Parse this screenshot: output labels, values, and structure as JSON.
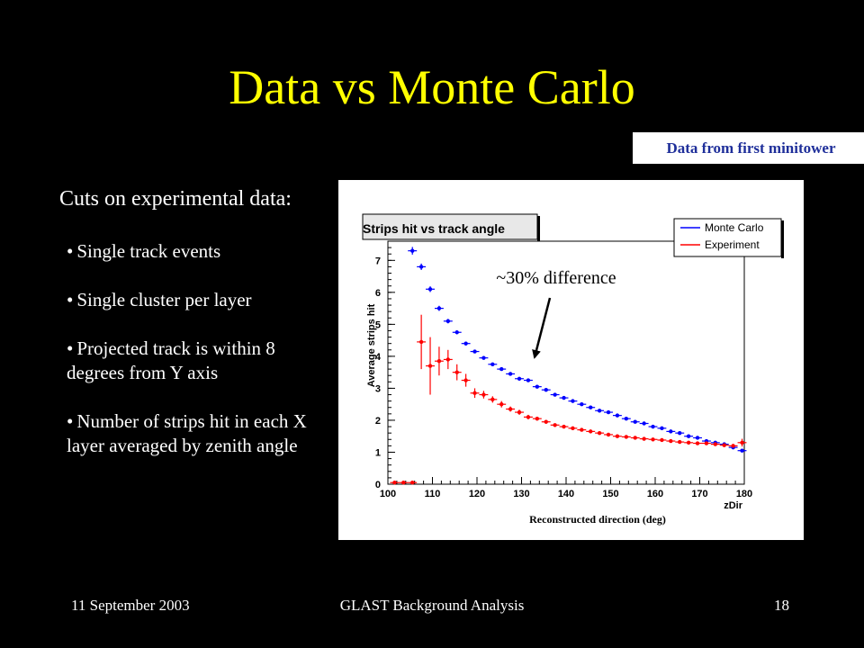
{
  "slide": {
    "title": "Data vs Monte Carlo",
    "source_badge": "Data from first minitower",
    "cuts_heading": "Cuts on experimental data:",
    "cuts": [
      "Single track events",
      "Single cluster per layer",
      "Projected track is within 8 degrees from Y axis",
      "Number of strips hit in each X layer averaged by zenith angle"
    ],
    "bullet": "•"
  },
  "footer": {
    "date": "11 September 2003",
    "title": "GLAST Background Analysis",
    "page": "18"
  },
  "chart_data": {
    "type": "scatter",
    "title": "Strips hit vs track angle",
    "xlabel": "zDir",
    "ylabel": "Average strips hit",
    "caption": "Reconstructed direction (deg)",
    "annotation": "~30% difference",
    "xlim": [
      100,
      180
    ],
    "ylim": [
      0,
      7.6
    ],
    "xticks": [
      100,
      110,
      120,
      130,
      140,
      150,
      160,
      170,
      180
    ],
    "yticks": [
      0,
      1,
      2,
      3,
      4,
      5,
      6,
      7
    ],
    "grid": false,
    "legend_position": "top-right",
    "series": [
      {
        "name": "Monte Carlo",
        "color": "#0000ff",
        "x": [
          105.5,
          107.5,
          109.5,
          111.5,
          113.5,
          115.5,
          117.5,
          119.5,
          121.5,
          123.5,
          125.5,
          127.5,
          129.5,
          131.5,
          133.5,
          135.5,
          137.5,
          139.5,
          141.5,
          143.5,
          145.5,
          147.5,
          149.5,
          151.5,
          153.5,
          155.5,
          157.5,
          159.5,
          161.5,
          163.5,
          165.5,
          167.5,
          169.5,
          171.5,
          173.5,
          175.5,
          177.5,
          179.5
        ],
        "y": [
          7.3,
          6.8,
          6.1,
          5.5,
          5.1,
          4.75,
          4.4,
          4.15,
          3.95,
          3.75,
          3.6,
          3.45,
          3.3,
          3.25,
          3.05,
          2.95,
          2.8,
          2.7,
          2.6,
          2.5,
          2.4,
          2.3,
          2.25,
          2.15,
          2.05,
          1.95,
          1.9,
          1.8,
          1.75,
          1.65,
          1.6,
          1.5,
          1.45,
          1.35,
          1.3,
          1.25,
          1.15,
          1.05
        ],
        "yerr": [
          0.12,
          0.1,
          0.09,
          0.08,
          0.07,
          0.06,
          0.06,
          0.05,
          0.05,
          0.05,
          0.05,
          0.04,
          0.04,
          0.04,
          0.04,
          0.04,
          0.04,
          0.04,
          0.03,
          0.03,
          0.03,
          0.03,
          0.03,
          0.03,
          0.03,
          0.03,
          0.03,
          0.03,
          0.03,
          0.03,
          0.03,
          0.03,
          0.03,
          0.03,
          0.03,
          0.03,
          0.03,
          0.03
        ]
      },
      {
        "name": "Experiment",
        "color": "#ff0000",
        "x": [
          101.5,
          103.5,
          105.5,
          107.5,
          109.5,
          111.5,
          113.5,
          115.5,
          117.5,
          119.5,
          121.5,
          123.5,
          125.5,
          127.5,
          129.5,
          131.5,
          133.5,
          135.5,
          137.5,
          139.5,
          141.5,
          143.5,
          145.5,
          147.5,
          149.5,
          151.5,
          153.5,
          155.5,
          157.5,
          159.5,
          161.5,
          163.5,
          165.5,
          167.5,
          169.5,
          171.5,
          173.5,
          175.5,
          177.5,
          179.5
        ],
        "y": [
          0.05,
          0.05,
          0.05,
          4.45,
          3.7,
          3.85,
          3.9,
          3.5,
          3.25,
          2.85,
          2.8,
          2.65,
          2.5,
          2.35,
          2.25,
          2.1,
          2.05,
          1.95,
          1.85,
          1.8,
          1.75,
          1.7,
          1.65,
          1.6,
          1.55,
          1.5,
          1.48,
          1.45,
          1.42,
          1.4,
          1.38,
          1.35,
          1.32,
          1.3,
          1.28,
          1.28,
          1.25,
          1.22,
          1.2,
          1.3
        ],
        "yerr": [
          0,
          0,
          0,
          0.85,
          0.9,
          0.45,
          0.3,
          0.25,
          0.2,
          0.15,
          0.12,
          0.1,
          0.1,
          0.08,
          0.08,
          0.07,
          0.06,
          0.06,
          0.05,
          0.05,
          0.05,
          0.05,
          0.04,
          0.04,
          0.04,
          0.04,
          0.04,
          0.04,
          0.04,
          0.04,
          0.04,
          0.04,
          0.04,
          0.04,
          0.04,
          0.04,
          0.04,
          0.04,
          0.05,
          0.12
        ]
      }
    ]
  }
}
